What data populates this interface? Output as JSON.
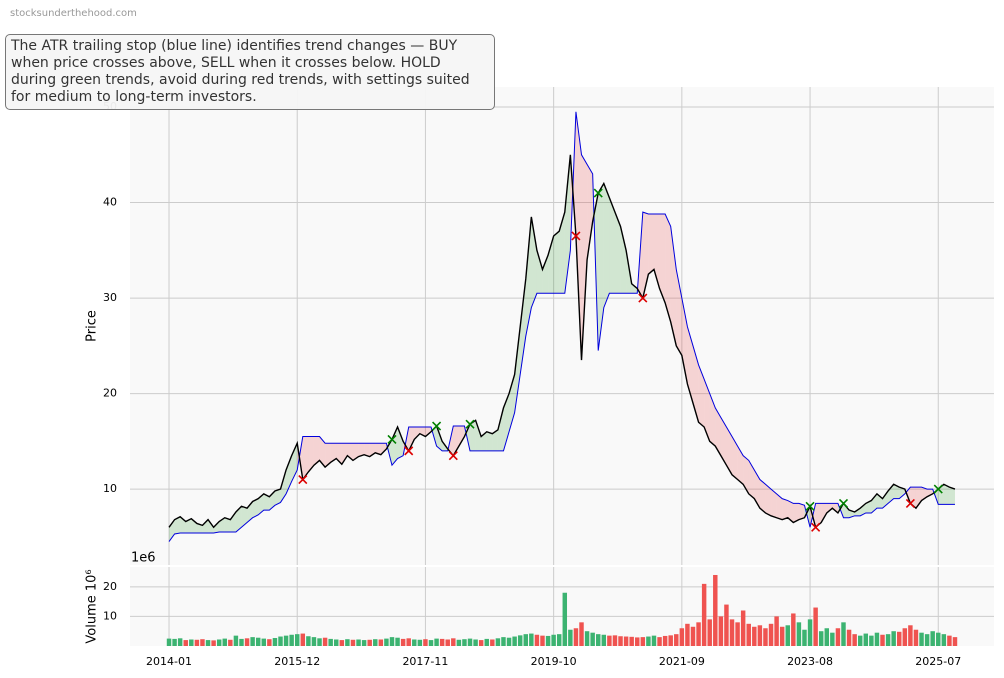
{
  "source": "stocksunderthehood.com",
  "annotation": "The ATR trailing stop (blue line) identifies trend changes — BUY when price crosses above, SELL when it crosses below. HOLD during green trends, avoid during red trends, with settings suited for medium to long-term investors.",
  "chart_data": [
    {
      "type": "line",
      "ylabel": "Price",
      "x": [
        "2014-01",
        "2014-02",
        "2014-03",
        "2014-04",
        "2014-05",
        "2014-06",
        "2014-07",
        "2014-08",
        "2014-09",
        "2014-10",
        "2014-11",
        "2014-12",
        "2015-01",
        "2015-02",
        "2015-03",
        "2015-04",
        "2015-05",
        "2015-06",
        "2015-07",
        "2015-08",
        "2015-09",
        "2015-10",
        "2015-11",
        "2015-12",
        "2016-01",
        "2016-02",
        "2016-03",
        "2016-04",
        "2016-05",
        "2016-06",
        "2016-07",
        "2016-08",
        "2016-09",
        "2016-10",
        "2016-11",
        "2016-12",
        "2017-01",
        "2017-02",
        "2017-03",
        "2017-04",
        "2017-05",
        "2017-06",
        "2017-07",
        "2017-08",
        "2017-09",
        "2017-10",
        "2017-11",
        "2017-12",
        "2018-01",
        "2018-02",
        "2018-03",
        "2018-04",
        "2018-05",
        "2018-06",
        "2018-07",
        "2018-08",
        "2018-09",
        "2018-10",
        "2018-11",
        "2018-12",
        "2019-01",
        "2019-02",
        "2019-03",
        "2019-04",
        "2019-05",
        "2019-06",
        "2019-07",
        "2019-08",
        "2019-09",
        "2019-10",
        "2019-11",
        "2019-12",
        "2020-01",
        "2020-02",
        "2020-03",
        "2020-04",
        "2020-05",
        "2020-06",
        "2020-07",
        "2020-08",
        "2020-09",
        "2020-10",
        "2020-11",
        "2020-12",
        "2021-01",
        "2021-02",
        "2021-03",
        "2021-04",
        "2021-05",
        "2021-06",
        "2021-07",
        "2021-08",
        "2021-09",
        "2021-10",
        "2021-11",
        "2021-12",
        "2022-01",
        "2022-02",
        "2022-03",
        "2022-04",
        "2022-05",
        "2022-06",
        "2022-07",
        "2022-08",
        "2022-09",
        "2022-10",
        "2022-11",
        "2022-12",
        "2023-01",
        "2023-02",
        "2023-03",
        "2023-04",
        "2023-05",
        "2023-06",
        "2023-07",
        "2023-08",
        "2023-09",
        "2023-10",
        "2023-11",
        "2023-12",
        "2024-01",
        "2024-02",
        "2024-03",
        "2024-04",
        "2024-05",
        "2024-06",
        "2024-07",
        "2024-08",
        "2024-09",
        "2024-10",
        "2024-11",
        "2024-12",
        "2025-01",
        "2025-02",
        "2025-03",
        "2025-04",
        "2025-05",
        "2025-06",
        "2025-07",
        "2025-08",
        "2025-09",
        "2025-10"
      ],
      "series": [
        {
          "color": "#000000",
          "values": [
            6.0,
            6.8,
            7.1,
            6.6,
            6.9,
            6.4,
            6.2,
            6.8,
            6.0,
            6.6,
            7.0,
            6.8,
            7.6,
            8.2,
            8.0,
            8.7,
            9.0,
            9.5,
            9.2,
            9.8,
            10.0,
            12.0,
            13.5,
            14.8,
            11.0,
            11.8,
            12.5,
            13.0,
            12.3,
            12.8,
            13.2,
            12.6,
            13.5,
            13.0,
            13.4,
            13.6,
            13.4,
            13.8,
            13.6,
            14.2,
            15.2,
            16.5,
            15.0,
            14.0,
            15.2,
            15.8,
            15.5,
            16.0,
            16.6,
            15.0,
            14.2,
            13.5,
            14.5,
            15.5,
            16.8,
            17.2,
            15.5,
            16.0,
            15.8,
            16.2,
            18.5,
            20.0,
            22.0,
            27.0,
            32.0,
            38.5,
            35.0,
            33.0,
            34.5,
            36.5,
            37.0,
            39.0,
            45.0,
            36.5,
            23.5,
            34.0,
            38.0,
            41.0,
            42.0,
            40.5,
            39.0,
            37.5,
            35.0,
            31.5,
            31.0,
            30.0,
            32.5,
            33.0,
            31.0,
            29.5,
            27.5,
            25.0,
            24.0,
            21.0,
            19.0,
            17.0,
            16.5,
            15.0,
            14.5,
            13.5,
            12.5,
            11.5,
            11.0,
            10.5,
            9.5,
            9.0,
            8.0,
            7.5,
            7.2,
            7.0,
            6.8,
            7.0,
            6.5,
            6.8,
            7.0,
            8.2,
            6.0,
            6.5,
            7.5,
            8.0,
            7.5,
            8.5,
            7.8,
            7.6,
            8.0,
            8.5,
            8.8,
            9.5,
            9.0,
            9.8,
            10.5,
            10.2,
            10.0,
            8.5,
            8.0,
            8.8,
            9.2,
            9.5,
            10.0,
            10.5,
            10.2,
            10.0
          ]
        },
        {
          "color": "#0000dd",
          "values": [
            4.5,
            5.3,
            5.4,
            5.4,
            5.4,
            5.4,
            5.4,
            5.4,
            5.4,
            5.5,
            5.5,
            5.5,
            5.5,
            6.0,
            6.5,
            7.0,
            7.3,
            7.8,
            7.8,
            8.3,
            8.6,
            9.5,
            10.8,
            12.0,
            15.5,
            15.5,
            15.5,
            15.5,
            14.8,
            14.8,
            14.8,
            14.8,
            14.8,
            14.8,
            14.8,
            14.8,
            14.8,
            14.8,
            14.8,
            14.8,
            12.5,
            13.2,
            13.5,
            16.5,
            16.5,
            16.5,
            16.5,
            16.5,
            14.5,
            14.0,
            14.0,
            16.6,
            16.6,
            16.6,
            14.0,
            14.0,
            14.0,
            14.0,
            14.0,
            14.0,
            14.0,
            16.0,
            18.0,
            22.0,
            26.0,
            29.0,
            30.5,
            30.5,
            30.5,
            30.5,
            30.5,
            30.5,
            35.0,
            49.5,
            45.0,
            44.0,
            43.0,
            24.5,
            29.0,
            30.5,
            30.5,
            30.5,
            30.5,
            30.5,
            30.5,
            39.0,
            38.8,
            38.8,
            38.8,
            38.8,
            37.5,
            33.0,
            30.0,
            27.0,
            25.0,
            23.0,
            21.5,
            20.0,
            18.5,
            17.5,
            16.5,
            15.5,
            14.5,
            13.5,
            13.0,
            12.0,
            11.0,
            10.5,
            10.0,
            9.5,
            9.0,
            8.8,
            8.5,
            8.5,
            8.3,
            6.0,
            8.5,
            8.5,
            8.5,
            8.5,
            8.5,
            7.0,
            7.0,
            7.2,
            7.2,
            7.5,
            7.5,
            8.0,
            8.0,
            8.5,
            9.0,
            9.0,
            9.5,
            10.2,
            10.2,
            10.2,
            10.0,
            10.0,
            8.4,
            8.4,
            8.4,
            8.4
          ]
        }
      ],
      "fill_up_color": "rgba(0,128,0,0.16)",
      "fill_down_color": "rgba(230,60,60,0.2)",
      "buy_signals": {
        "color": "#008000",
        "x": [
          "2017-05",
          "2018-01",
          "2018-07",
          "2020-06",
          "2023-08",
          "2024-02",
          "2025-07"
        ],
        "values": [
          15.2,
          16.6,
          16.8,
          41.0,
          8.2,
          8.5,
          10.0
        ]
      },
      "sell_signals": {
        "color": "#dd0000",
        "x": [
          "2016-01",
          "2017-08",
          "2018-04",
          "2020-02",
          "2021-02",
          "2023-09",
          "2025-02"
        ],
        "values": [
          11.0,
          14.0,
          13.5,
          36.5,
          30.0,
          6.0,
          8.5
        ]
      },
      "xlim": [
        "2013-06",
        "2026-05"
      ],
      "ylim": [
        2.05,
        52.1
      ],
      "yticks": [
        10,
        20,
        30,
        40,
        50
      ],
      "grid": true
    },
    {
      "type": "bar",
      "ylabel": "Volume 10⁶",
      "offset_text": "1e6",
      "x": [
        "2014-01",
        "2014-02",
        "2014-03",
        "2014-04",
        "2014-05",
        "2014-06",
        "2014-07",
        "2014-08",
        "2014-09",
        "2014-10",
        "2014-11",
        "2014-12",
        "2015-01",
        "2015-02",
        "2015-03",
        "2015-04",
        "2015-05",
        "2015-06",
        "2015-07",
        "2015-08",
        "2015-09",
        "2015-10",
        "2015-11",
        "2015-12",
        "2016-01",
        "2016-02",
        "2016-03",
        "2016-04",
        "2016-05",
        "2016-06",
        "2016-07",
        "2016-08",
        "2016-09",
        "2016-10",
        "2016-11",
        "2016-12",
        "2017-01",
        "2017-02",
        "2017-03",
        "2017-04",
        "2017-05",
        "2017-06",
        "2017-07",
        "2017-08",
        "2017-09",
        "2017-10",
        "2017-11",
        "2017-12",
        "2018-01",
        "2018-02",
        "2018-03",
        "2018-04",
        "2018-05",
        "2018-06",
        "2018-07",
        "2018-08",
        "2018-09",
        "2018-10",
        "2018-11",
        "2018-12",
        "2019-01",
        "2019-02",
        "2019-03",
        "2019-04",
        "2019-05",
        "2019-06",
        "2019-07",
        "2019-08",
        "2019-09",
        "2019-10",
        "2019-11",
        "2019-12",
        "2020-01",
        "2020-02",
        "2020-03",
        "2020-04",
        "2020-05",
        "2020-06",
        "2020-07",
        "2020-08",
        "2020-09",
        "2020-10",
        "2020-11",
        "2020-12",
        "2021-01",
        "2021-02",
        "2021-03",
        "2021-04",
        "2021-05",
        "2021-06",
        "2021-07",
        "2021-08",
        "2021-09",
        "2021-10",
        "2021-11",
        "2021-12",
        "2022-01",
        "2022-02",
        "2022-03",
        "2022-04",
        "2022-05",
        "2022-06",
        "2022-07",
        "2022-08",
        "2022-09",
        "2022-10",
        "2022-11",
        "2022-12",
        "2023-01",
        "2023-02",
        "2023-03",
        "2023-04",
        "2023-05",
        "2023-06",
        "2023-07",
        "2023-08",
        "2023-09",
        "2023-10",
        "2023-11",
        "2023-12",
        "2024-01",
        "2024-02",
        "2024-03",
        "2024-04",
        "2024-05",
        "2024-06",
        "2024-07",
        "2024-08",
        "2024-09",
        "2024-10",
        "2024-11",
        "2024-12",
        "2025-01",
        "2025-02",
        "2025-03",
        "2025-04",
        "2025-05",
        "2025-06",
        "2025-07",
        "2025-08",
        "2025-09",
        "2025-10"
      ],
      "values": [
        2.5,
        2.4,
        2.6,
        2.0,
        2.2,
        2.1,
        2.3,
        2.0,
        1.9,
        2.2,
        2.5,
        2.1,
        3.5,
        2.4,
        2.6,
        3.0,
        2.8,
        2.5,
        2.3,
        2.7,
        3.2,
        3.5,
        3.8,
        4.0,
        4.2,
        3.3,
        3.0,
        2.6,
        2.8,
        2.4,
        2.2,
        2.0,
        2.3,
        2.1,
        2.2,
        2.0,
        2.1,
        2.3,
        2.2,
        2.5,
        3.0,
        2.8,
        2.4,
        2.6,
        2.2,
        2.1,
        2.3,
        2.0,
        2.5,
        2.4,
        2.2,
        2.6,
        2.1,
        2.3,
        2.5,
        2.2,
        2.0,
        2.4,
        2.2,
        2.6,
        3.0,
        2.8,
        3.2,
        3.6,
        4.0,
        4.2,
        3.8,
        3.5,
        3.4,
        3.8,
        4.0,
        18.0,
        5.5,
        6.0,
        8.0,
        5.0,
        4.5,
        4.0,
        3.8,
        3.5,
        3.6,
        3.3,
        3.2,
        3.1,
        2.9,
        3.0,
        3.2,
        3.5,
        3.0,
        3.4,
        3.6,
        4.0,
        6.0,
        7.5,
        6.5,
        8.0,
        21.0,
        9.0,
        24.0,
        10.0,
        14.0,
        9.0,
        8.0,
        12.0,
        7.5,
        6.5,
        7.0,
        6.0,
        7.5,
        10.0,
        6.5,
        7.0,
        11.0,
        8.0,
        5.5,
        9.0,
        13.0,
        5.0,
        6.0,
        4.5,
        6.0,
        8.0,
        5.5,
        4.0,
        3.5,
        4.2,
        3.5,
        4.5,
        3.8,
        4.0,
        5.0,
        4.8,
        6.0,
        7.0,
        5.5,
        4.5,
        4.0,
        5.0,
        4.5,
        4.0,
        3.5,
        3.0
      ],
      "up_color": "#3cb371",
      "down_color": "#ef5350",
      "xlim": [
        "2013-06",
        "2026-05"
      ],
      "ylim": [
        0,
        26.7
      ],
      "yticks": [
        10,
        20
      ],
      "xticks": [
        "2014-01",
        "2015-12",
        "2017-11",
        "2019-10",
        "2021-09",
        "2023-08",
        "2025-07"
      ],
      "grid": true
    }
  ]
}
